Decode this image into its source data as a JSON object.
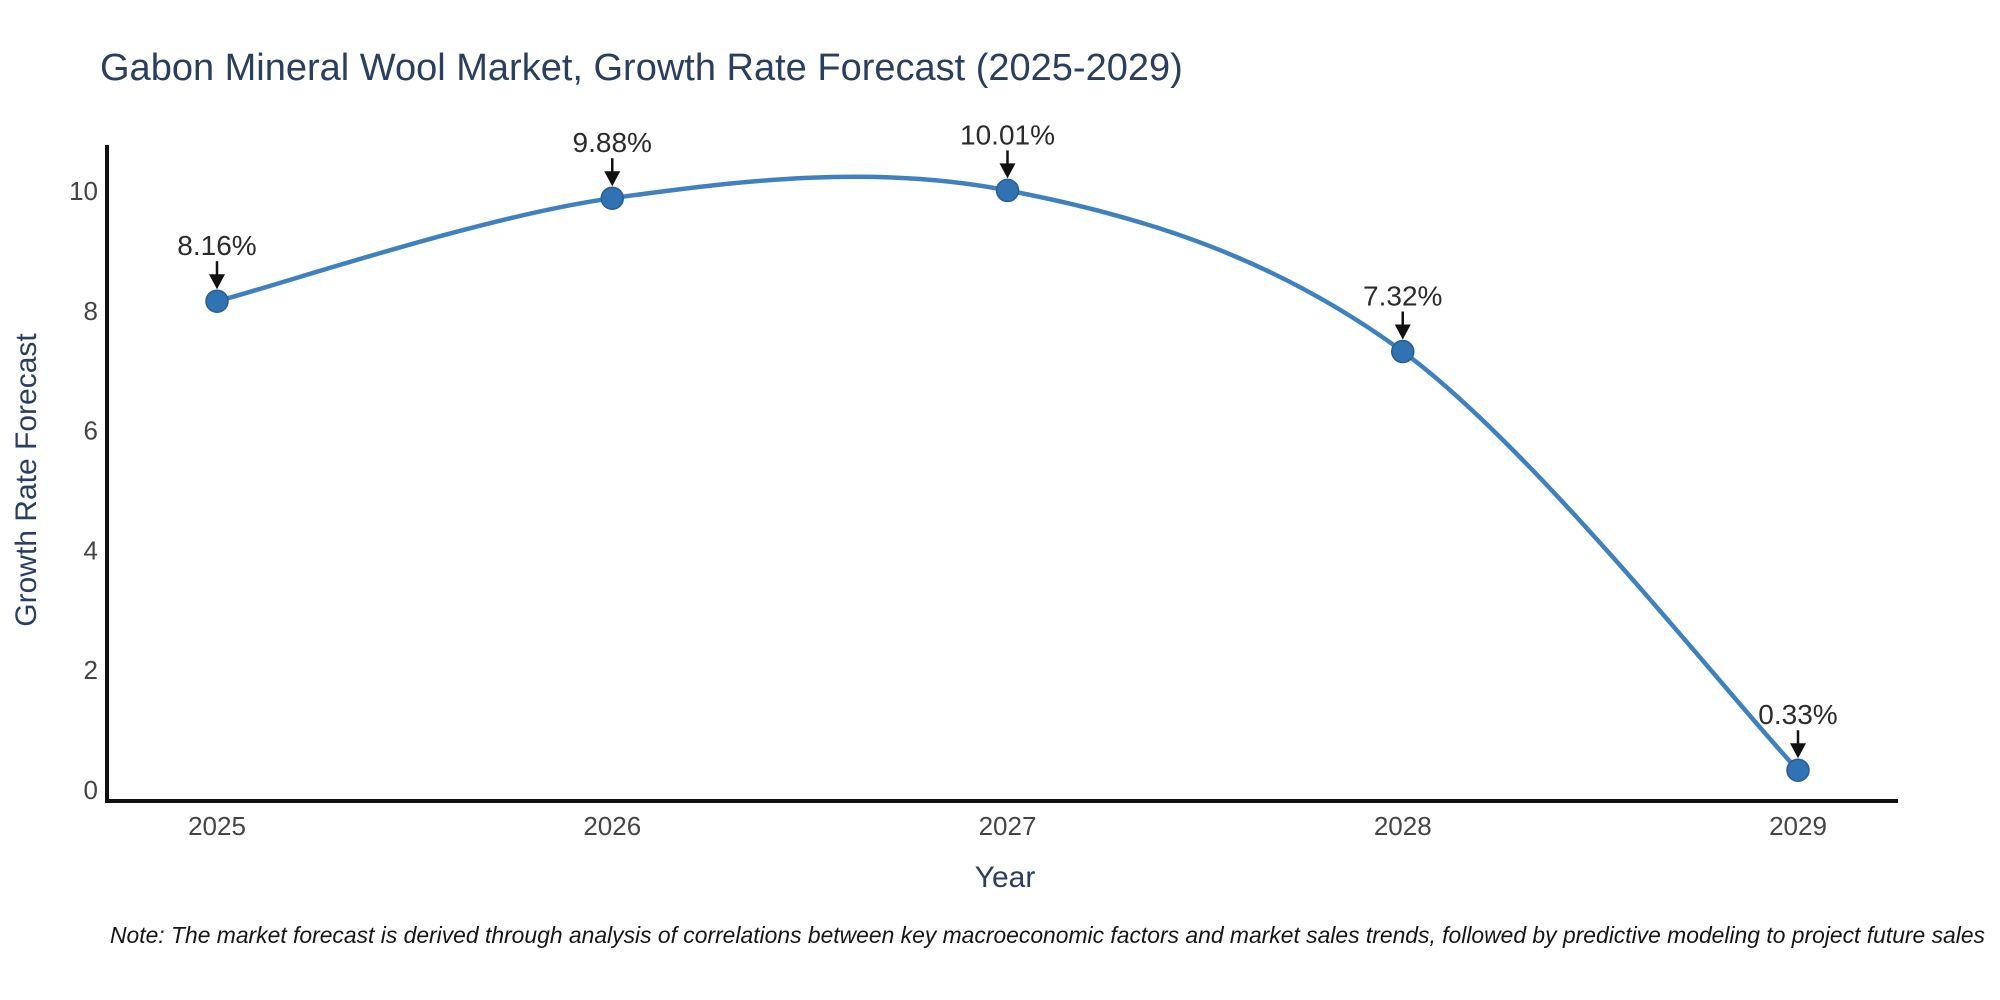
{
  "note": "Note: The market forecast is derived through analysis of correlations between key macroeconomic factors and market sales trends, followed by predictive modeling to project future sales",
  "colors": {
    "background": "#ffffff",
    "line": "#3f81be",
    "marker_fill": "#3173b2",
    "marker_edge": "#285e94",
    "axis_line": "#111111",
    "title_text": "#2a3f5f",
    "axis_title_text": "#2a3f5f",
    "tick_text": "#444444",
    "annotation_text": "#2b2b2b",
    "arrow": "#111111",
    "note_text": "#151515"
  },
  "chart_data": {
    "type": "line",
    "title": "Gabon Mineral Wool Market, Growth Rate Forecast (2025-2029)",
    "xlabel": "Year",
    "ylabel": "Growth Rate Forecast",
    "x": [
      "2025",
      "2026",
      "2027",
      "2028",
      "2029"
    ],
    "series": [
      {
        "name": "Growth Rate Forecast",
        "values": [
          8.16,
          9.88,
          10.01,
          7.32,
          0.33
        ],
        "point_labels": [
          "8.16%",
          "9.88%",
          "10.01%",
          "7.32%",
          "0.33%"
        ]
      }
    ],
    "yticks": [
      0,
      2,
      4,
      6,
      8,
      10
    ],
    "ylim": [
      -0.2,
      10.6
    ],
    "line_shape": "spline",
    "markers": true,
    "grid": false,
    "legend": false,
    "annotations": "value labels with down arrows above each point"
  }
}
